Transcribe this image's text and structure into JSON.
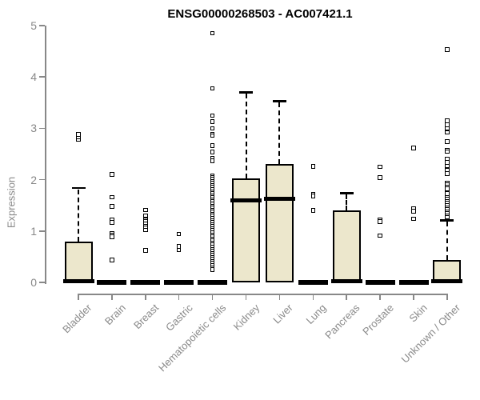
{
  "chart_data": {
    "type": "boxplot",
    "title": "ENSG00000268503 - AC007421.1",
    "ylabel": "Expression",
    "xlabel": "",
    "ylim": [
      0,
      5
    ],
    "yticks": [
      0,
      1,
      2,
      3,
      4,
      5
    ],
    "grid": false,
    "legend": "none",
    "colors": {
      "box_fill": "#ece7cc",
      "box_border": "#000000",
      "axis": "#888888",
      "tick_text": "#8a8a8a",
      "title_text": "#000000"
    },
    "categories": [
      "Bladder",
      "Brain",
      "Breast",
      "Gastric",
      "Hematopoietic cells",
      "Kidney",
      "Liver",
      "Lung",
      "Pancreas",
      "Prostate",
      "Skin",
      "Unknown / Other"
    ],
    "series": [
      {
        "category": "Bladder",
        "q1": 0,
        "median": 0.02,
        "q3": 0.79,
        "whisker_low": 0,
        "whisker_high": 1.84,
        "outliers": [
          2.78,
          2.83,
          2.88
        ]
      },
      {
        "category": "Brain",
        "q1": 0,
        "median": 0,
        "q3": 0,
        "whisker_low": 0,
        "whisker_high": 0,
        "outliers": [
          2.1,
          1.66,
          1.48,
          1.22,
          1.17,
          0.95,
          0.92,
          0.89,
          0.44
        ]
      },
      {
        "category": "Breast",
        "q1": 0,
        "median": 0,
        "q3": 0,
        "whisker_low": 0,
        "whisker_high": 0,
        "outliers": [
          1.41,
          1.3,
          1.22,
          1.18,
          1.14,
          1.1,
          1.06,
          1.02,
          0.62
        ]
      },
      {
        "category": "Gastric",
        "q1": 0,
        "median": 0,
        "q3": 0,
        "whisker_low": 0,
        "whisker_high": 0,
        "outliers": [
          0.94,
          0.7,
          0.63
        ]
      },
      {
        "category": "Hematopoietic cells",
        "q1": 0,
        "median": 0,
        "q3": 0,
        "whisker_low": 0,
        "whisker_high": 0,
        "outliers": [
          4.85,
          3.78,
          3.25,
          3.13,
          3.0,
          2.89,
          2.86,
          2.66,
          2.54,
          2.42,
          2.37,
          2.08,
          2.04,
          2.01,
          1.97,
          1.93,
          1.89,
          1.85,
          1.81,
          1.77,
          1.73,
          1.69,
          1.65,
          1.61,
          1.57,
          1.53,
          1.49,
          1.45,
          1.41,
          1.37,
          1.33,
          1.29,
          1.25,
          1.21,
          1.17,
          1.13,
          1.09,
          1.05,
          1.01,
          0.97,
          0.93,
          0.89,
          0.85,
          0.81,
          0.77,
          0.73,
          0.69,
          0.65,
          0.61,
          0.57,
          0.53,
          0.49,
          0.45,
          0.41,
          0.37,
          0.33,
          0.29,
          0.25
        ]
      },
      {
        "category": "Kidney",
        "q1": 0,
        "median": 1.6,
        "q3": 2.03,
        "whisker_low": 0,
        "whisker_high": 3.7,
        "outliers": []
      },
      {
        "category": "Liver",
        "q1": 0,
        "median": 1.63,
        "q3": 2.3,
        "whisker_low": 0,
        "whisker_high": 3.53,
        "outliers": []
      },
      {
        "category": "Lung",
        "q1": 0,
        "median": 0,
        "q3": 0,
        "whisker_low": 0,
        "whisker_high": 0,
        "outliers": [
          2.26,
          1.72,
          1.68,
          1.4
        ]
      },
      {
        "category": "Pancreas",
        "q1": 0,
        "median": 0.02,
        "q3": 1.4,
        "whisker_low": 0,
        "whisker_high": 1.74,
        "outliers": []
      },
      {
        "category": "Prostate",
        "q1": 0,
        "median": 0,
        "q3": 0,
        "whisker_low": 0,
        "whisker_high": 0,
        "outliers": [
          2.25,
          2.04,
          1.22,
          1.18,
          0.91
        ]
      },
      {
        "category": "Skin",
        "q1": 0,
        "median": 0,
        "q3": 0,
        "whisker_low": 0,
        "whisker_high": 0,
        "outliers": [
          2.62,
          1.43,
          1.39,
          1.24
        ]
      },
      {
        "category": "Unknown / Other",
        "q1": 0,
        "median": 0.02,
        "q3": 0.44,
        "whisker_low": 0,
        "whisker_high": 1.21,
        "outliers": [
          4.53,
          3.15,
          3.07,
          3.0,
          2.92,
          2.74,
          2.57,
          2.55,
          2.41,
          2.34,
          2.27,
          2.18,
          2.12,
          1.94,
          1.9,
          1.86,
          1.82,
          1.73,
          1.66,
          1.62,
          1.58,
          1.54,
          1.5,
          1.46,
          1.42,
          1.38,
          1.34,
          1.3,
          1.27
        ]
      }
    ]
  }
}
